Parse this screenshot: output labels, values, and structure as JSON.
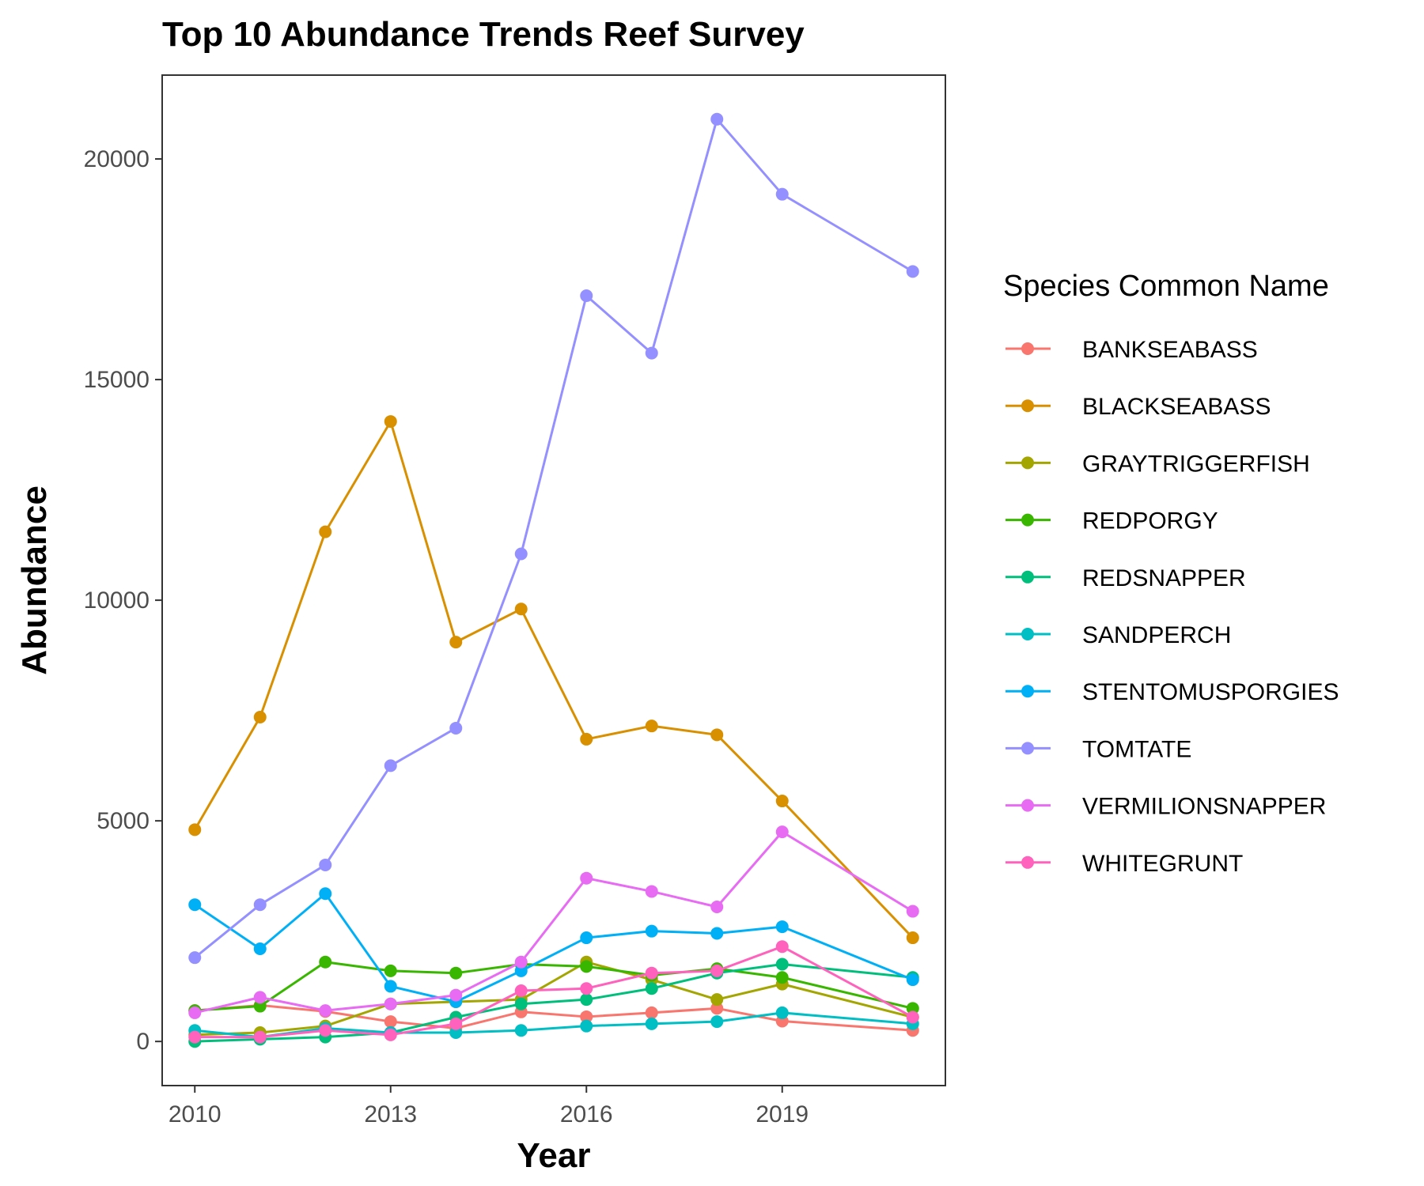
{
  "chart_data": {
    "type": "line",
    "title": "Top 10 Abundance Trends Reef Survey",
    "xlabel": "Year",
    "ylabel": "Abundance",
    "xlim": [
      2009.5,
      2021.5
    ],
    "ylim": [
      -1000,
      21900
    ],
    "x_ticks": [
      2010,
      2013,
      2016,
      2019
    ],
    "y_ticks": [
      0,
      5000,
      10000,
      15000,
      20000
    ],
    "grid": false,
    "legend": {
      "title": "Species Common Name",
      "position": "right"
    },
    "x": [
      2010,
      2011,
      2012,
      2013,
      2014,
      2015,
      2016,
      2017,
      2018,
      2019,
      2021
    ],
    "series": [
      {
        "name": "BANKSEABASS",
        "color": "#F8766D",
        "values": [
          700,
          820,
          680,
          450,
          300,
          670,
          560,
          650,
          750,
          460,
          250
        ]
      },
      {
        "name": "BLACKSEABASS",
        "color": "#D89000",
        "values": [
          4800,
          7350,
          11550,
          14050,
          9050,
          9800,
          6850,
          7150,
          6950,
          5450,
          2350
        ]
      },
      {
        "name": "GRAYTRIGGERFISH",
        "color": "#A3A500",
        "values": [
          150,
          200,
          350,
          850,
          900,
          950,
          1800,
          1400,
          950,
          1300,
          550
        ]
      },
      {
        "name": "REDPORGY",
        "color": "#39B600",
        "values": [
          700,
          800,
          1800,
          1600,
          1550,
          1750,
          1700,
          1500,
          1650,
          1450,
          750
        ]
      },
      {
        "name": "REDSNAPPER",
        "color": "#00BF7D",
        "values": [
          0,
          50,
          100,
          200,
          550,
          850,
          950,
          1200,
          1550,
          1750,
          1450
        ]
      },
      {
        "name": "SANDPERCH",
        "color": "#00BFC4",
        "values": [
          250,
          100,
          300,
          200,
          200,
          250,
          350,
          400,
          450,
          650,
          400
        ]
      },
      {
        "name": "STENTOMUSPORGIES",
        "color": "#00B0F6",
        "values": [
          3100,
          2100,
          3350,
          1250,
          900,
          1600,
          2350,
          2500,
          2450,
          2600,
          1400
        ]
      },
      {
        "name": "TOMTATE",
        "color": "#9590FF",
        "values": [
          1900,
          3100,
          4000,
          6250,
          7100,
          11050,
          16900,
          15600,
          20900,
          19200,
          17450
        ]
      },
      {
        "name": "VERMILIONSNAPPER",
        "color": "#E76BF3",
        "values": [
          650,
          1000,
          700,
          850,
          1050,
          1800,
          3700,
          3400,
          3050,
          4750,
          2950
        ]
      },
      {
        "name": "WHITEGRUNT",
        "color": "#FF62BC",
        "values": [
          100,
          100,
          250,
          150,
          400,
          1150,
          1200,
          1550,
          1600,
          2150,
          550
        ]
      }
    ]
  }
}
